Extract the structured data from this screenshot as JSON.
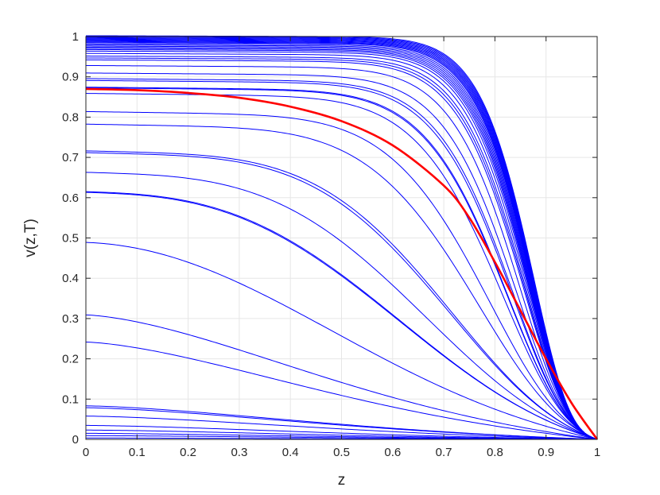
{
  "chart_data": {
    "type": "line",
    "title": "",
    "xlabel": "z",
    "ylabel": "v(z,T)",
    "xlim": [
      0,
      1
    ],
    "ylim": [
      0,
      1
    ],
    "x_ticks": [
      "0",
      "0.1",
      "0.2",
      "0.3",
      "0.4",
      "0.5",
      "0.6",
      "0.7",
      "0.8",
      "0.9",
      "1"
    ],
    "y_ticks": [
      "0",
      "0.1",
      "0.2",
      "0.3",
      "0.4",
      "0.5",
      "0.6",
      "0.7",
      "0.8",
      "0.9",
      "1"
    ],
    "grid": true,
    "legend": "none",
    "family_color": "#0000ff",
    "highlight_color": "#ff0000",
    "family_values_at_z0": [
      0.003,
      0.008,
      0.013,
      0.02,
      0.03,
      0.05,
      0.068,
      0.072,
      0.21,
      0.27,
      0.44,
      0.57,
      0.572,
      0.625,
      0.68,
      0.685,
      0.76,
      0.795,
      0.845,
      0.86,
      0.862,
      0.88,
      0.885,
      0.9,
      0.92,
      0.935,
      0.94,
      0.945,
      0.952,
      0.958,
      0.962,
      0.965,
      0.968,
      0.971,
      0.974,
      0.977,
      0.98,
      0.982,
      0.984,
      0.986,
      0.988,
      0.99,
      0.992,
      0.994,
      0.996,
      0.998
    ],
    "highlight_series": {
      "x": [
        0,
        0.1,
        0.2,
        0.3,
        0.4,
        0.5,
        0.6,
        0.7,
        0.75,
        0.8,
        0.85,
        0.9,
        0.95,
        1
      ],
      "y": [
        0.87,
        0.867,
        0.86,
        0.848,
        0.826,
        0.79,
        0.73,
        0.63,
        0.55,
        0.44,
        0.32,
        0.2,
        0.09,
        0
      ]
    }
  }
}
